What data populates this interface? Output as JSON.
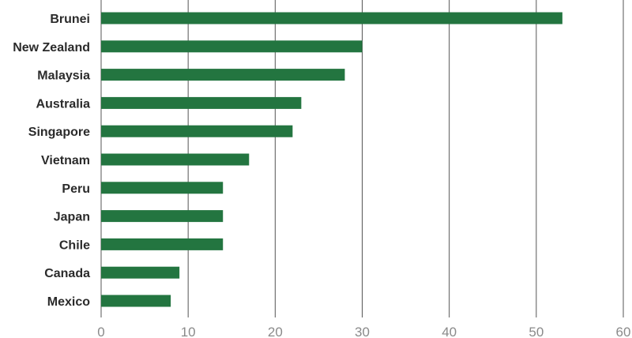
{
  "chart_data": {
    "type": "bar",
    "orientation": "horizontal",
    "title": "",
    "xlabel": "",
    "ylabel": "",
    "categories": [
      "Brunei",
      "New Zealand",
      "Malaysia",
      "Australia",
      "Singapore",
      "Vietnam",
      "Peru",
      "Japan",
      "Chile",
      "Canada",
      "Mexico"
    ],
    "values": [
      53,
      30,
      28,
      23,
      22,
      17,
      14,
      14,
      14,
      9,
      8
    ],
    "xlim": [
      0,
      60
    ],
    "xticks": [
      "0",
      "10",
      "20",
      "30",
      "40",
      "50",
      "60"
    ],
    "grid": true,
    "bar_color": "#237540"
  }
}
